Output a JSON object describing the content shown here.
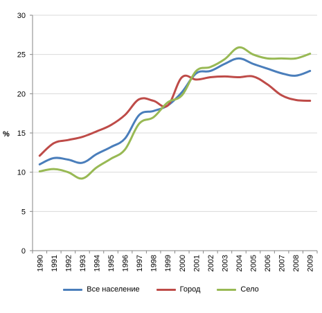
{
  "chart_data": {
    "type": "line",
    "ylabel": "%",
    "ylim": [
      0,
      30
    ],
    "yticks": [
      0,
      5,
      10,
      15,
      20,
      25,
      30
    ],
    "categories": [
      "1990",
      "1991",
      "1992",
      "1993",
      "1994",
      "1995",
      "1996",
      "1997",
      "1998",
      "1999",
      "2000",
      "2001",
      "2002",
      "2003",
      "2004",
      "2005",
      "2006",
      "2007",
      "2008",
      "2009"
    ],
    "series": [
      {
        "name": "Все население",
        "color": "#4a7ebb",
        "values": [
          11.0,
          11.8,
          11.6,
          11.2,
          12.3,
          13.2,
          14.3,
          17.3,
          17.8,
          18.5,
          20.2,
          22.6,
          22.9,
          23.8,
          24.5,
          23.8,
          23.2,
          22.6,
          22.3,
          22.9
        ]
      },
      {
        "name": "Город",
        "color": "#be4b48",
        "values": [
          12.1,
          13.7,
          14.1,
          14.5,
          15.2,
          16.0,
          17.3,
          19.3,
          19.1,
          18.5,
          22.1,
          21.8,
          22.1,
          22.2,
          22.1,
          22.2,
          21.2,
          19.8,
          19.2,
          19.1
        ]
      },
      {
        "name": "Село",
        "color": "#98b954",
        "values": [
          10.1,
          10.4,
          10.0,
          9.2,
          10.6,
          11.7,
          12.9,
          16.2,
          17.0,
          18.9,
          19.8,
          22.9,
          23.4,
          24.4,
          25.9,
          25.0,
          24.5,
          24.5,
          24.5,
          25.1
        ]
      }
    ],
    "grid": "horizontal",
    "legend": "bottom"
  }
}
